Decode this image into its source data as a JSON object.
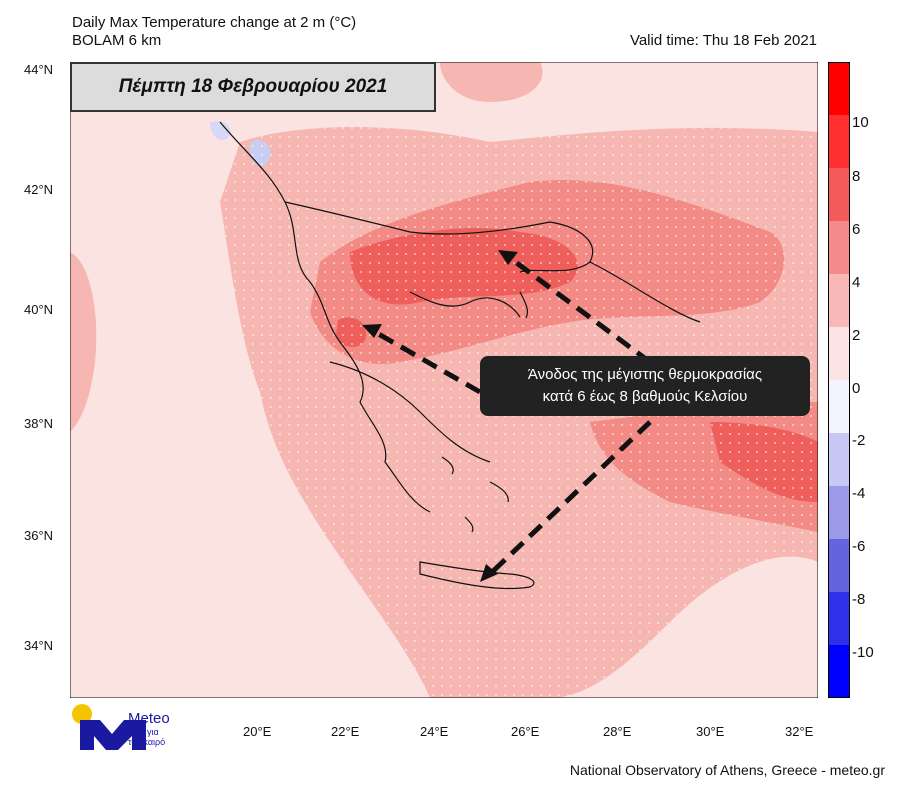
{
  "header": {
    "title": "Daily Max Temperature change at 2 m (°C)",
    "model": "BOLAM 6 km",
    "valid_time": "Valid time: Thu 18 Feb 2021"
  },
  "date_banner": "Πέμπτη 18 Φεβρουαρίου 2021",
  "callout": {
    "line1": "Άνοδος της μέγιστης θερμοκρασίας",
    "line2": "κατά 6 έως 8 βαθμούς Κελσίου"
  },
  "axes": {
    "lat_labels": [
      "44°N",
      "42°N",
      "40°N",
      "38°N",
      "36°N",
      "34°N"
    ],
    "lon_labels": [
      "20°E",
      "22°E",
      "24°E",
      "26°E",
      "28°E",
      "30°E",
      "32°E"
    ]
  },
  "colorbar": {
    "labels": [
      "10",
      "8",
      "6",
      "4",
      "2",
      "0",
      "-2",
      "-4",
      "-6",
      "-8",
      "-10"
    ],
    "colors": [
      "#ff0000",
      "#ff3030",
      "#f55a5a",
      "#f58a8a",
      "#f8b8b8",
      "#fde4e4",
      "#f4f4ff",
      "#c8c8f5",
      "#9a9ae8",
      "#6464e0",
      "#3030e8",
      "#0000ff"
    ]
  },
  "map_colors": {
    "base": "#fbe3e1",
    "warm2": "#f6b7b3",
    "warm4": "#f28a86",
    "warm6": "#ee5e5a",
    "cool": "#c9cdf3"
  },
  "logo": {
    "brand": "Meteo",
    "tagline1": "Όλα για",
    "tagline2": "τον καιρό",
    "icon": "meteo-logo-icon"
  },
  "credit": "National Observatory of Athens, Greece - meteo.gr"
}
